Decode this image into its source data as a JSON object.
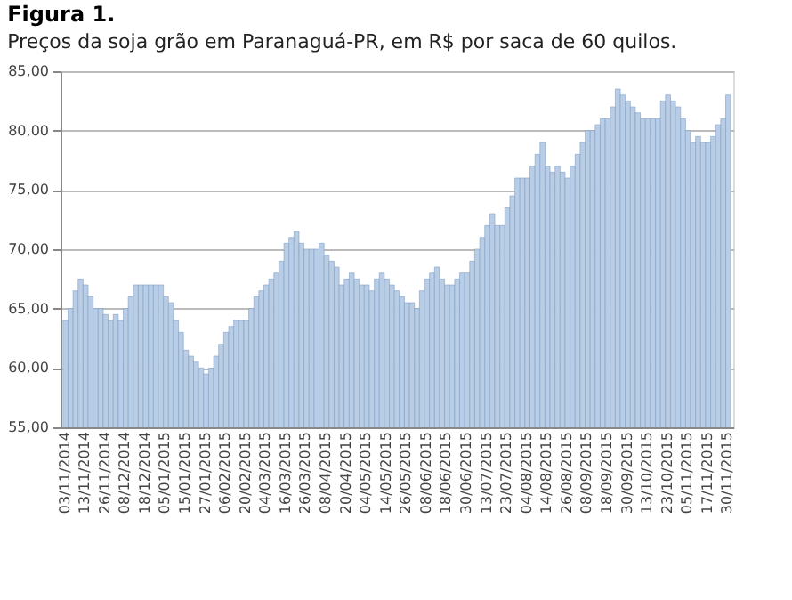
{
  "chart_data": {
    "type": "bar",
    "title": "Figura 1.",
    "subtitle": "Preços da soja grão em Paranaguá-PR, em R$ por saca de 60 quilos.",
    "categories": [
      "03/11/2014",
      null,
      null,
      null,
      "13/11/2014",
      null,
      null,
      null,
      "26/11/2014",
      null,
      null,
      null,
      "08/12/2014",
      null,
      null,
      null,
      "18/12/2014",
      null,
      null,
      null,
      "05/01/2015",
      null,
      null,
      null,
      "15/01/2015",
      null,
      null,
      null,
      "27/01/2015",
      null,
      null,
      null,
      "06/02/2015",
      null,
      null,
      null,
      "20/02/2015",
      null,
      null,
      null,
      "04/03/2015",
      null,
      null,
      null,
      "16/03/2015",
      null,
      null,
      null,
      "26/03/2015",
      null,
      null,
      null,
      "08/04/2015",
      null,
      null,
      null,
      "20/04/2015",
      null,
      null,
      null,
      "04/05/2015",
      null,
      null,
      null,
      "14/05/2015",
      null,
      null,
      null,
      "26/05/2015",
      null,
      null,
      null,
      "08/06/2015",
      null,
      null,
      null,
      "18/06/2015",
      null,
      null,
      null,
      "30/06/2015",
      null,
      null,
      null,
      "13/07/2015",
      null,
      null,
      null,
      "23/07/2015",
      null,
      null,
      null,
      "04/08/2015",
      null,
      null,
      null,
      "14/08/2015",
      null,
      null,
      null,
      "26/08/2015",
      null,
      null,
      null,
      "08/09/2015",
      null,
      null,
      null,
      "18/09/2015",
      null,
      null,
      null,
      "30/09/2015",
      null,
      null,
      null,
      "13/10/2015",
      null,
      null,
      null,
      "23/10/2015",
      null,
      null,
      null,
      "05/11/2015",
      null,
      null,
      null,
      "17/11/2015",
      null,
      null,
      null,
      "30/11/2015"
    ],
    "values": [
      64,
      65,
      66.5,
      67.5,
      67,
      66,
      65,
      65,
      64.5,
      64,
      64.5,
      64,
      65,
      66,
      67,
      67,
      67,
      67,
      67,
      67,
      66,
      65.5,
      64,
      63,
      61.5,
      61,
      60.5,
      60,
      59.5,
      60,
      61,
      62,
      63,
      63.5,
      64,
      64,
      64,
      65,
      66,
      66.5,
      67,
      67.5,
      68,
      69,
      70.5,
      71,
      71.5,
      70.5,
      70,
      70,
      70,
      70.5,
      69.5,
      69,
      68.5,
      67,
      67.5,
      68,
      67.5,
      67,
      67,
      66.5,
      67.5,
      68,
      67.5,
      67,
      66.5,
      66,
      65.5,
      65.5,
      65,
      66.5,
      67.5,
      68,
      68.5,
      67.5,
      67,
      67,
      67.5,
      68,
      68,
      69,
      70,
      71,
      72,
      73,
      72,
      72,
      73.5,
      74.5,
      76,
      76,
      76,
      77,
      78,
      79,
      77,
      76.5,
      77,
      76.5,
      76,
      77,
      78,
      79,
      80,
      80,
      80.5,
      81,
      81,
      82,
      83.5,
      83,
      82.5,
      82,
      81.5,
      81,
      81,
      81,
      81,
      82.5,
      83,
      82.5,
      82,
      81,
      80,
      79,
      79.5,
      79,
      79,
      79.5,
      80.5,
      81,
      83
    ],
    "color": "#b9cde5",
    "ylim": [
      55,
      85
    ],
    "yticks": [
      {
        "value": 55,
        "label": "55,00"
      },
      {
        "value": 60,
        "label": "60,00"
      },
      {
        "value": 65,
        "label": "65,00"
      },
      {
        "value": 70,
        "label": "70,00"
      },
      {
        "value": 75,
        "label": "75,00"
      },
      {
        "value": 80,
        "label": "80,00"
      },
      {
        "value": 85,
        "label": "85,00"
      }
    ],
    "grid": "y"
  }
}
